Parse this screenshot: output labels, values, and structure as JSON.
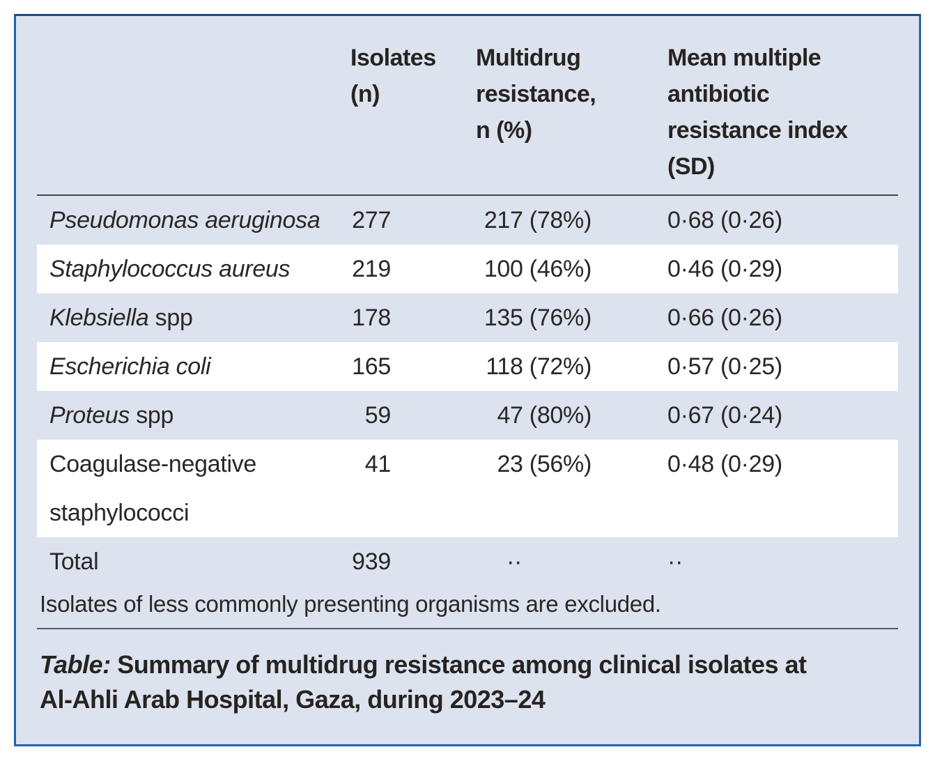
{
  "colors": {
    "panel_background": "#dce2ee",
    "panel_border": "#2564ad",
    "stripe": "#ffffff",
    "text": "#2a2724",
    "header_rule": "#454545"
  },
  "table": {
    "columns": {
      "organism": "",
      "isolates": "Isolates\n(n)",
      "mdr": "Multidrug\nresistance,\nn (%)",
      "mari": "Mean multiple\nantibiotic\nresistance index\n(SD)"
    },
    "rows": [
      {
        "name_italic": "Pseudomonas aeruginosa",
        "name_roman": "",
        "isolates": "277",
        "mdr": "217 (78%)",
        "mari": "0·68 (0·26)"
      },
      {
        "name_italic": "Staphylococcus aureus",
        "name_roman": "",
        "isolates": "219",
        "mdr": "100 (46%)",
        "mari": "0·46 (0·29)"
      },
      {
        "name_italic": "Klebsiella",
        "name_roman": " spp",
        "isolates": "178",
        "mdr": "135 (76%)",
        "mari": "0·66 (0·26)"
      },
      {
        "name_italic": "Escherichia coli",
        "name_roman": "",
        "isolates": "165",
        "mdr": "118 (72%)",
        "mari": "0·57 (0·25)"
      },
      {
        "name_italic": "Proteus",
        "name_roman": " spp",
        "isolates": "59",
        "mdr": "47 (80%)",
        "mari": "0·67 (0·24)"
      },
      {
        "name_italic": "",
        "name_roman": "Coagulase-negative staphylococci",
        "isolates": "41",
        "mdr": "23 (56%)",
        "mari": "0·48 (0·29)"
      }
    ],
    "total_row": {
      "label": "Total",
      "isolates": "939",
      "mdr": "··",
      "mari": "··"
    },
    "footnote": "Isolates of less commonly presenting organisms are excluded.",
    "caption": {
      "label": "Table:",
      "text": "Summary of multidrug resistance among clinical isolates at\nAl-Ahli Arab Hospital, Gaza, during 2023–24"
    }
  }
}
